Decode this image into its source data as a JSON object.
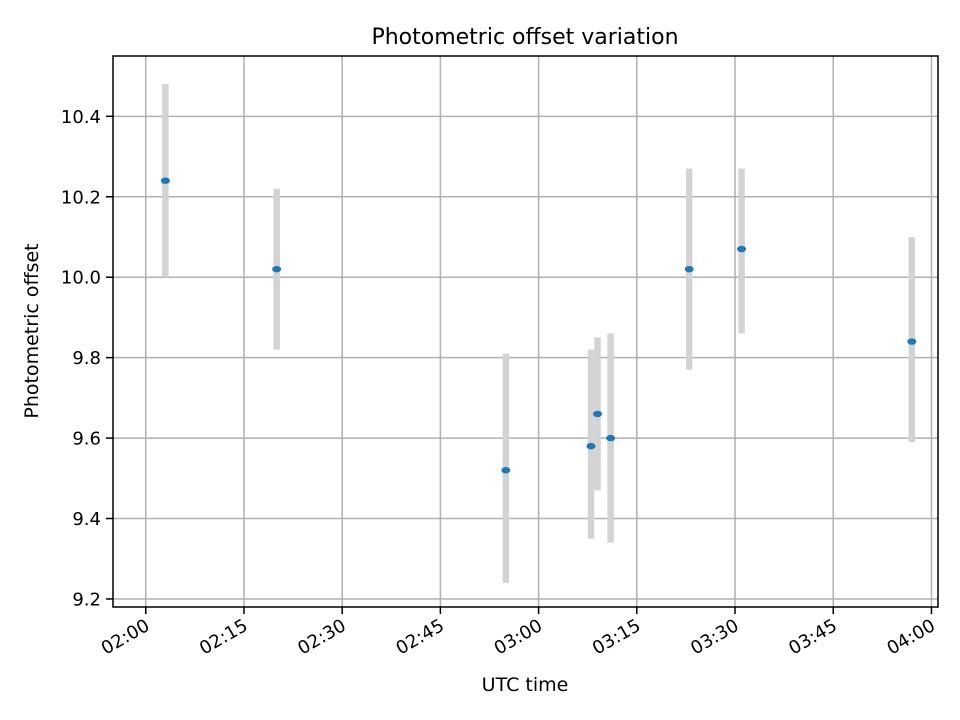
{
  "chart_data": {
    "type": "scatter",
    "title": "Photometric offset variation",
    "xlabel": "UTC time",
    "ylabel": "Photometric offset",
    "x_unit": "UTC time (HH:MM)",
    "xlim": [
      "01:55",
      "04:01"
    ],
    "ylim": [
      9.18,
      10.55
    ],
    "x_ticks": [
      "02:00",
      "02:15",
      "02:30",
      "02:45",
      "03:00",
      "03:15",
      "03:30",
      "03:45",
      "04:00"
    ],
    "y_ticks": [
      9.2,
      9.4,
      9.6,
      9.8,
      10.0,
      10.2,
      10.4
    ],
    "y_tick_labels": [
      "9.2",
      "9.4",
      "9.6",
      "9.8",
      "10.0",
      "10.2",
      "10.4"
    ],
    "grid": true,
    "point_color": "#1f77b4",
    "errorbar_color": "#d3d3d3",
    "points": [
      {
        "x": "02:03",
        "y": 10.24,
        "err_low": 10.0,
        "err_high": 10.48
      },
      {
        "x": "02:20",
        "y": 10.02,
        "err_low": 9.82,
        "err_high": 10.22
      },
      {
        "x": "02:55",
        "y": 9.52,
        "err_low": 9.24,
        "err_high": 9.81
      },
      {
        "x": "03:08",
        "y": 9.58,
        "err_low": 9.35,
        "err_high": 9.82
      },
      {
        "x": "03:09",
        "y": 9.66,
        "err_low": 9.47,
        "err_high": 9.85
      },
      {
        "x": "03:11",
        "y": 9.6,
        "err_low": 9.34,
        "err_high": 9.86
      },
      {
        "x": "03:23",
        "y": 10.02,
        "err_low": 9.77,
        "err_high": 10.27
      },
      {
        "x": "03:31",
        "y": 10.07,
        "err_low": 9.86,
        "err_high": 10.27
      },
      {
        "x": "03:57",
        "y": 9.84,
        "err_low": 9.59,
        "err_high": 10.1
      }
    ]
  }
}
